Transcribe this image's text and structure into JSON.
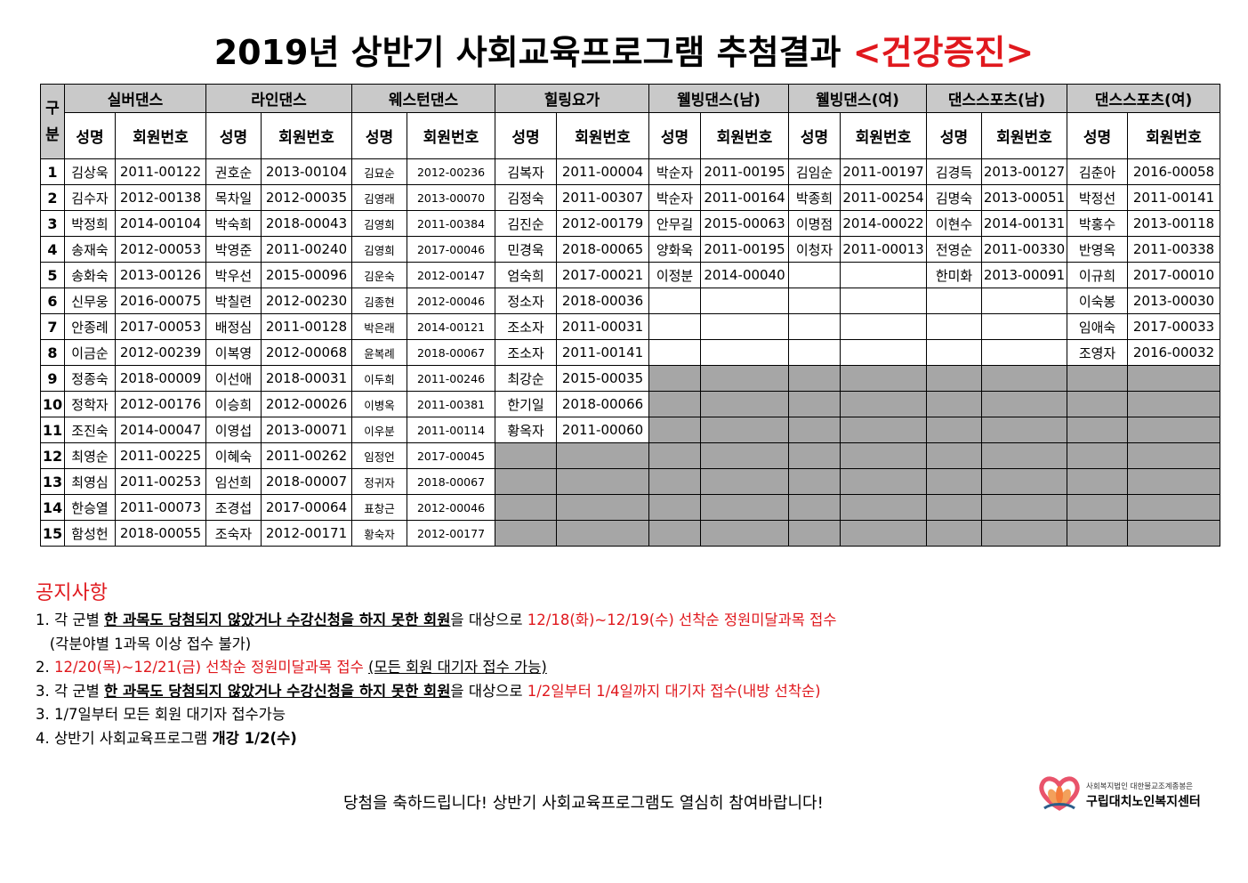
{
  "title": {
    "main": "2019년 상반기 사회교육프로그램 추첨결과",
    "highlight": "<건강증진>"
  },
  "table": {
    "gubun": "구분",
    "groups": [
      "실버댄스",
      "라인댄스",
      "웨스턴댄스",
      "힐링요가",
      "웰빙댄스(남)",
      "웰빙댄스(여)",
      "댄스스포츠(남)",
      "댄스스포츠(여)"
    ],
    "sub_name": "성명",
    "sub_id": "회원번호",
    "rows": [
      {
        "no": "1",
        "cells": [
          [
            "김상욱",
            "2011-00122"
          ],
          [
            "권호순",
            "2013-00104"
          ],
          [
            "김묘순",
            "2012-00236"
          ],
          [
            "김복자",
            "2011-00004"
          ],
          [
            "박순자",
            "2011-00195"
          ],
          [
            "김임순",
            "2011-00197"
          ],
          [
            "김경득",
            "2013-00127"
          ],
          [
            "김춘아",
            "2016-00058"
          ]
        ]
      },
      {
        "no": "2",
        "cells": [
          [
            "김수자",
            "2012-00138"
          ],
          [
            "목차일",
            "2012-00035"
          ],
          [
            "김영래",
            "2013-00070"
          ],
          [
            "김정숙",
            "2011-00307"
          ],
          [
            "박순자",
            "2011-00164"
          ],
          [
            "박종희",
            "2011-00254"
          ],
          [
            "김명숙",
            "2013-00051"
          ],
          [
            "박정선",
            "2011-00141"
          ]
        ]
      },
      {
        "no": "3",
        "cells": [
          [
            "박정희",
            "2014-00104"
          ],
          [
            "박숙희",
            "2018-00043"
          ],
          [
            "김영희",
            "2011-00384"
          ],
          [
            "김진순",
            "2012-00179"
          ],
          [
            "안무길",
            "2015-00063"
          ],
          [
            "이명점",
            "2014-00022"
          ],
          [
            "이현수",
            "2014-00131"
          ],
          [
            "박홍수",
            "2013-00118"
          ]
        ]
      },
      {
        "no": "4",
        "cells": [
          [
            "송재숙",
            "2012-00053"
          ],
          [
            "박영준",
            "2011-00240"
          ],
          [
            "김영희",
            "2017-00046"
          ],
          [
            "민경욱",
            "2018-00065"
          ],
          [
            "양화욱",
            "2011-00195"
          ],
          [
            "이청자",
            "2011-00013"
          ],
          [
            "전영순",
            "2011-00330"
          ],
          [
            "반영옥",
            "2011-00338"
          ]
        ]
      },
      {
        "no": "5",
        "cells": [
          [
            "송화숙",
            "2013-00126"
          ],
          [
            "박우선",
            "2015-00096"
          ],
          [
            "김운숙",
            "2012-00147"
          ],
          [
            "엄숙희",
            "2017-00021"
          ],
          [
            "이정분",
            "2014-00040"
          ],
          [
            "",
            ""
          ],
          [
            "한미화",
            "2013-00091"
          ],
          [
            "이규희",
            "2017-00010"
          ]
        ]
      },
      {
        "no": "6",
        "cells": [
          [
            "신무웅",
            "2016-00075"
          ],
          [
            "박칠련",
            "2012-00230"
          ],
          [
            "김종현",
            "2012-00046"
          ],
          [
            "정소자",
            "2018-00036"
          ],
          [
            "",
            ""
          ],
          [
            "",
            ""
          ],
          [
            "",
            ""
          ],
          [
            "이숙봉",
            "2013-00030"
          ]
        ]
      },
      {
        "no": "7",
        "cells": [
          [
            "안종례",
            "2017-00053"
          ],
          [
            "배정심",
            "2011-00128"
          ],
          [
            "박은래",
            "2014-00121"
          ],
          [
            "조소자",
            "2011-00031"
          ],
          [
            "",
            ""
          ],
          [
            "",
            ""
          ],
          [
            "",
            ""
          ],
          [
            "임애숙",
            "2017-00033"
          ]
        ]
      },
      {
        "no": "8",
        "cells": [
          [
            "이금순",
            "2012-00239"
          ],
          [
            "이복영",
            "2012-00068"
          ],
          [
            "윤복례",
            "2018-00067"
          ],
          [
            "조소자",
            "2011-00141"
          ],
          [
            "",
            ""
          ],
          [
            "",
            ""
          ],
          [
            "",
            ""
          ],
          [
            "조영자",
            "2016-00032"
          ]
        ]
      },
      {
        "no": "9",
        "cells": [
          [
            "정종숙",
            "2018-00009"
          ],
          [
            "이선애",
            "2018-00031"
          ],
          [
            "이두희",
            "2011-00246"
          ],
          [
            "최강순",
            "2015-00035"
          ]
        ]
      },
      {
        "no": "10",
        "cells": [
          [
            "정학자",
            "2012-00176"
          ],
          [
            "이승희",
            "2012-00026"
          ],
          [
            "이병옥",
            "2011-00381"
          ],
          [
            "한기일",
            "2018-00066"
          ]
        ]
      },
      {
        "no": "11",
        "cells": [
          [
            "조진숙",
            "2014-00047"
          ],
          [
            "이영섭",
            "2013-00071"
          ],
          [
            "이우분",
            "2011-00114"
          ],
          [
            "황옥자",
            "2011-00060"
          ]
        ]
      },
      {
        "no": "12",
        "cells": [
          [
            "최영순",
            "2011-00225"
          ],
          [
            "이혜숙",
            "2011-00262"
          ],
          [
            "임정언",
            "2017-00045"
          ]
        ]
      },
      {
        "no": "13",
        "cells": [
          [
            "최영심",
            "2011-00253"
          ],
          [
            "임선희",
            "2018-00007"
          ],
          [
            "정귀자",
            "2018-00067"
          ]
        ]
      },
      {
        "no": "14",
        "cells": [
          [
            "한승열",
            "2011-00073"
          ],
          [
            "조경섭",
            "2017-00064"
          ],
          [
            "표창근",
            "2012-00046"
          ]
        ]
      },
      {
        "no": "15",
        "cells": [
          [
            "함성헌",
            "2018-00055"
          ],
          [
            "조숙자",
            "2012-00171"
          ],
          [
            "황숙자",
            "2012-00177"
          ]
        ]
      }
    ]
  },
  "notice": {
    "heading": "공지사항",
    "items": [
      {
        "parts": [
          {
            "t": "1. 각 군별 ",
            "s": ""
          },
          {
            "t": "한 과목도 당첨되지 않았거나 수강신청을 하지 못한 회원",
            "s": "bu"
          },
          {
            "t": "을 대상으로 ",
            "s": ""
          },
          {
            "t": "12/18(화)~12/19(수) 선착순 정원미달과목 접수",
            "s": "red"
          }
        ]
      },
      {
        "parts": [
          {
            "t": "   (각분야별 1과목 이상 접수 불가)",
            "s": ""
          }
        ]
      },
      {
        "parts": [
          {
            "t": "2. ",
            "s": ""
          },
          {
            "t": "12/20(목)~12/21(금) 선착순 정원미달과목 접수",
            "s": "red"
          },
          {
            "t": " ",
            "s": ""
          },
          {
            "t": "(모든 회원 대기자 접수 가능)",
            "s": "u"
          }
        ]
      },
      {
        "parts": [
          {
            "t": "3. 각 군별 ",
            "s": ""
          },
          {
            "t": "한 과목도 당첨되지 않았거나 수강신청을 하지 못한 회원",
            "s": "bu"
          },
          {
            "t": "을 대상으로 ",
            "s": ""
          },
          {
            "t": "1/2일부터 1/4일까지 대기자 접수(내방 선착순)",
            "s": "red"
          }
        ]
      },
      {
        "parts": [
          {
            "t": "3. 1/7일부터 모든 회원 대기자 접수가능",
            "s": ""
          }
        ]
      },
      {
        "parts": [
          {
            "t": "4. 상반기 사회교육프로그램 ",
            "s": ""
          },
          {
            "t": "개강 1/2(수)",
            "s": "b"
          }
        ]
      }
    ]
  },
  "footer": "당첨을 축하드립니다! 상반기 사회교육프로그램도 열심히 참여바랍니다!",
  "logo": {
    "line1": "사회복지법인 대한불교조계종봉은",
    "line2": "구립대치노인복지센터",
    "icon": "lotus-heart-icon",
    "colors": {
      "heart": "#e9536b",
      "leaf": "#2b5d8a",
      "petal": "#f3a05b"
    }
  },
  "colors": {
    "red": "#e0181d",
    "header_grey": "#c9c9c9",
    "empty_grey": "#a6a6a6"
  }
}
